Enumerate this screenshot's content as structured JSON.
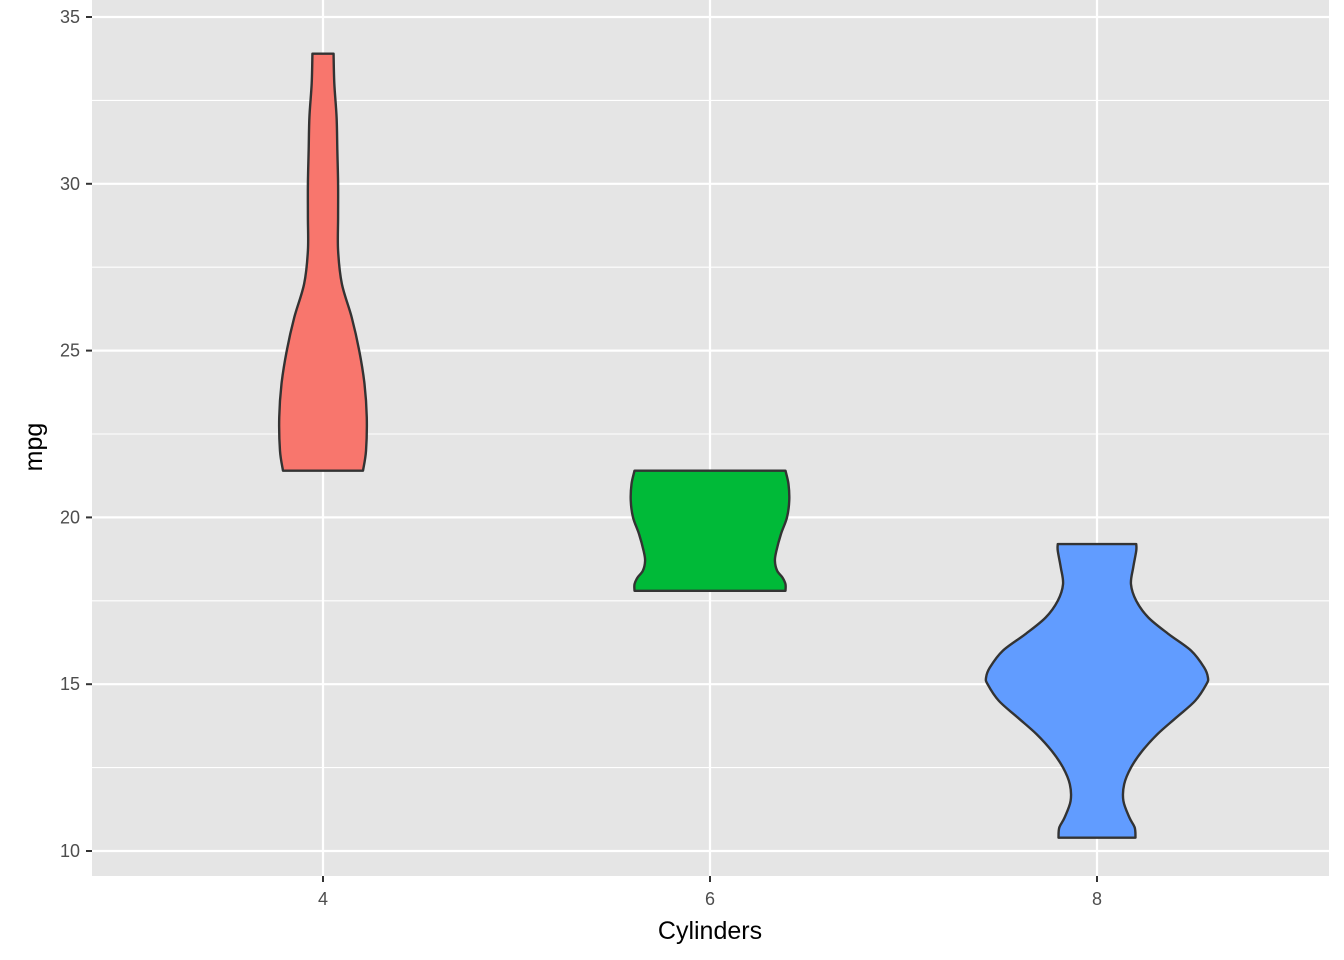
{
  "chart_data": {
    "type": "violin",
    "xlabel": "Cylinders",
    "ylabel": "mpg",
    "x_ticks": [
      "4",
      "6",
      "8"
    ],
    "y_ticks": [
      "10",
      "15",
      "20",
      "25",
      "30",
      "35"
    ],
    "xlim": [
      3,
      9.3
    ],
    "ylim": [
      9.3,
      35
    ],
    "grid": true,
    "legend": "none",
    "series": [
      {
        "x": 4,
        "color": "#F8766D",
        "ymin": 21.4,
        "ymax": 33.9,
        "profile": [
          [
            21.4,
            0.53
          ],
          [
            22.0,
            0.57
          ],
          [
            23.0,
            0.58
          ],
          [
            24.0,
            0.55
          ],
          [
            25.0,
            0.48
          ],
          [
            26.0,
            0.38
          ],
          [
            27.0,
            0.25
          ],
          [
            28.0,
            0.2
          ],
          [
            29.0,
            0.2
          ],
          [
            30.0,
            0.2
          ],
          [
            31.0,
            0.19
          ],
          [
            32.0,
            0.18
          ],
          [
            33.0,
            0.15
          ],
          [
            33.9,
            0.14
          ]
        ]
      },
      {
        "x": 6,
        "color": "#00BA38",
        "ymin": 17.8,
        "ymax": 21.4,
        "profile": [
          [
            17.8,
            1.0
          ],
          [
            18.0,
            1.0
          ],
          [
            18.2,
            0.96
          ],
          [
            18.4,
            0.89
          ],
          [
            18.7,
            0.86
          ],
          [
            19.0,
            0.88
          ],
          [
            19.5,
            0.94
          ],
          [
            20.0,
            1.02
          ],
          [
            20.5,
            1.05
          ],
          [
            21.0,
            1.04
          ],
          [
            21.4,
            1.0
          ]
        ]
      },
      {
        "x": 8,
        "color": "#619CFF",
        "ymin": 10.4,
        "ymax": 19.2,
        "profile": [
          [
            10.4,
            0.51
          ],
          [
            10.7,
            0.5
          ],
          [
            11.0,
            0.43
          ],
          [
            11.5,
            0.35
          ],
          [
            12.0,
            0.36
          ],
          [
            12.5,
            0.45
          ],
          [
            13.0,
            0.6
          ],
          [
            13.5,
            0.8
          ],
          [
            14.0,
            1.05
          ],
          [
            14.5,
            1.3
          ],
          [
            15.0,
            1.45
          ],
          [
            15.2,
            1.47
          ],
          [
            15.5,
            1.42
          ],
          [
            16.0,
            1.25
          ],
          [
            16.5,
            0.95
          ],
          [
            17.0,
            0.68
          ],
          [
            17.5,
            0.52
          ],
          [
            18.0,
            0.45
          ],
          [
            18.5,
            0.48
          ],
          [
            19.0,
            0.52
          ],
          [
            19.2,
            0.52
          ]
        ]
      }
    ]
  }
}
